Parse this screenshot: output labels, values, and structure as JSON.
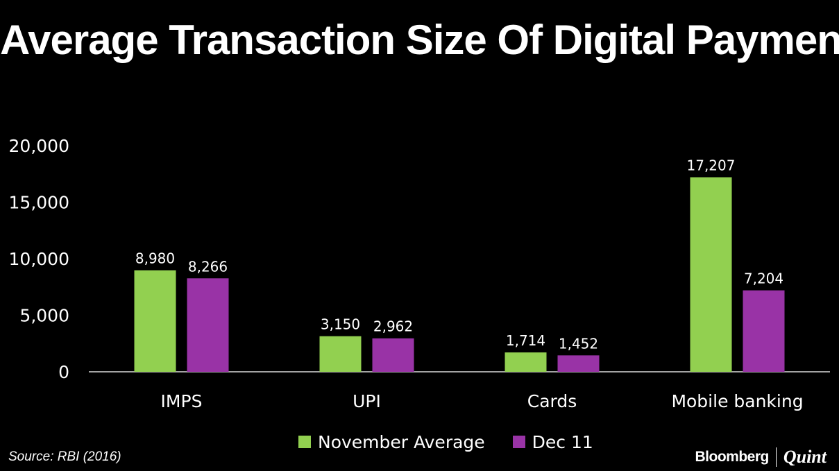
{
  "chart_data": {
    "type": "bar",
    "title": "Average Transaction Size Of Digital Payments",
    "categories": [
      "IMPS",
      "UPI",
      "Cards",
      "Mobile banking"
    ],
    "series": [
      {
        "name": "November Average",
        "color": "#92d050",
        "values": [
          8980,
          3150,
          1714,
          17207
        ],
        "labels": [
          "8,980",
          "3,150",
          "1,714",
          "17,207"
        ]
      },
      {
        "name": "Dec 11",
        "color": "#9933a6",
        "values": [
          8266,
          2962,
          1452,
          7204
        ],
        "labels": [
          "8,266",
          "2,962",
          "1,452",
          "7,204"
        ]
      }
    ],
    "ylim": [
      0,
      20000
    ],
    "yticks": [
      0,
      5000,
      10000,
      15000,
      20000
    ],
    "ytick_labels": [
      "0",
      "5,000",
      "10,000",
      "15,000",
      "20,000"
    ],
    "xlabel": "",
    "ylabel": "",
    "grid": false,
    "legend": "bottom"
  },
  "footer": {
    "source": "Source: RBI (2016)",
    "brand_left": "Bloomberg",
    "brand_right": "Quint"
  }
}
